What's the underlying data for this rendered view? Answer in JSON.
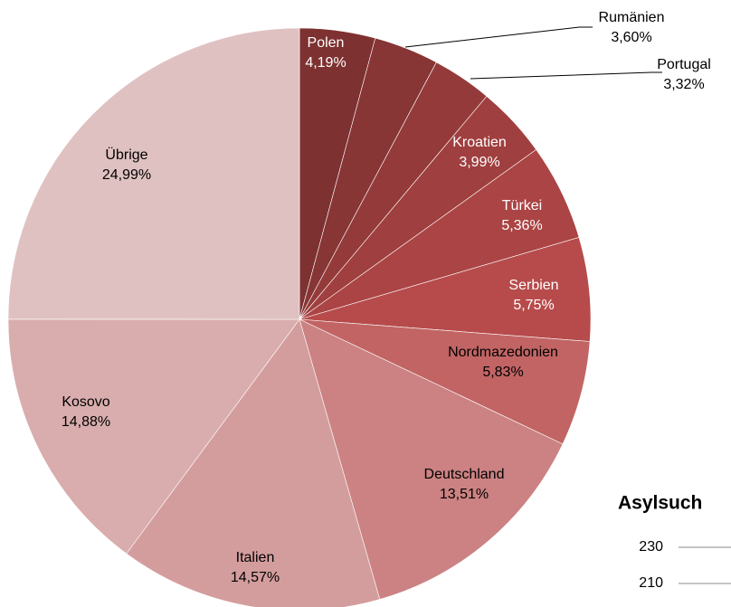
{
  "chart_data": [
    {
      "type": "pie",
      "categories": [
        "Polen",
        "Rumänien",
        "Portugal",
        "Kroatien",
        "Türkei",
        "Serbien",
        "Nordmazedonien",
        "Deutschland",
        "Italien",
        "Kosovo",
        "Übrige"
      ],
      "values": [
        4.19,
        3.6,
        3.32,
        3.99,
        5.36,
        5.75,
        5.83,
        13.51,
        14.57,
        14.88,
        24.99
      ],
      "value_labels": [
        "4,19%",
        "3,60%",
        "3,32%",
        "3,99%",
        "5,36%",
        "5,75%",
        "5,83%",
        "13,51%",
        "14,57%",
        "14,88%",
        "24,99%"
      ],
      "colors": [
        "#7e3131",
        "#883535",
        "#943a3a",
        "#a03f3f",
        "#ab4444",
        "#b74b4b",
        "#c26464",
        "#cc8282",
        "#d49d9d",
        "#d9adad",
        "#e0c1c1"
      ]
    },
    {
      "type": "line",
      "title": "Asylsuch",
      "ylim": [
        210,
        230
      ],
      "yticks": [
        230,
        210
      ],
      "grid": true
    }
  ]
}
